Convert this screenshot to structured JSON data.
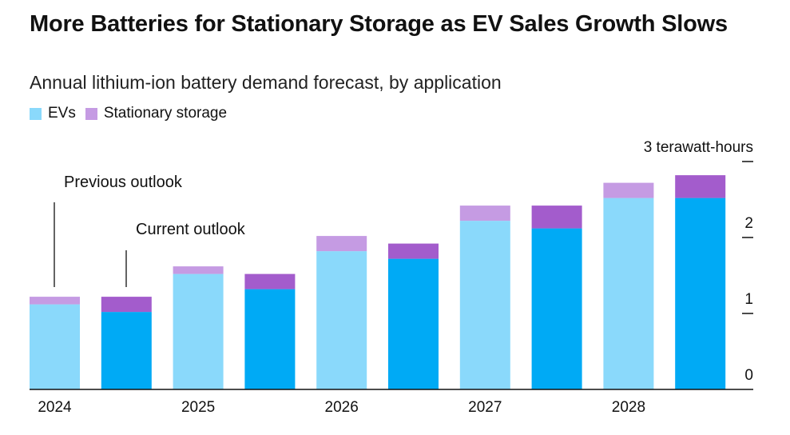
{
  "title": "More Batteries for Stationary Storage as EV Sales Growth Slows",
  "subtitle": "Annual lithium-ion battery demand forecast, by application",
  "legend": {
    "evs": "EVs",
    "storage": "Stationary storage"
  },
  "colors": {
    "ev_previous": "#8ad9fb",
    "ev_current": "#00aaf5",
    "storage_previous": "#c59be3",
    "storage_current": "#a35ccc",
    "axis": "#111111"
  },
  "annotations": {
    "previous": "Previous outlook",
    "current": "Current outlook"
  },
  "chart_data": {
    "type": "bar",
    "stacked": true,
    "title": "More Batteries for Stationary Storage as EV Sales Growth Slows",
    "subtitle": "Annual lithium-ion battery demand forecast, by application",
    "x_labels": [
      "2024",
      "2025",
      "2026",
      "2027",
      "2028"
    ],
    "groups": [
      "Previous outlook",
      "Current outlook"
    ],
    "ylabel": "3 terawatt-hours",
    "ylim": [
      0,
      3
    ],
    "yticks": [
      "0",
      "1",
      "2",
      "3 terawatt-hours"
    ],
    "legend_position": "top-left",
    "bars": [
      {
        "year": "2024",
        "outlook": "Previous outlook",
        "evs": 1.12,
        "storage": 0.1
      },
      {
        "year": "2024",
        "outlook": "Current outlook",
        "evs": 1.02,
        "storage": 0.2
      },
      {
        "year": "2025",
        "outlook": "Previous outlook",
        "evs": 1.52,
        "storage": 0.1
      },
      {
        "year": "2025",
        "outlook": "Current outlook",
        "evs": 1.32,
        "storage": 0.2
      },
      {
        "year": "2026",
        "outlook": "Previous outlook",
        "evs": 1.82,
        "storage": 0.2
      },
      {
        "year": "2026",
        "outlook": "Current outlook",
        "evs": 1.72,
        "storage": 0.2
      },
      {
        "year": "2027",
        "outlook": "Previous outlook",
        "evs": 2.22,
        "storage": 0.2
      },
      {
        "year": "2027",
        "outlook": "Current outlook",
        "evs": 2.12,
        "storage": 0.3
      },
      {
        "year": "2028",
        "outlook": "Previous outlook",
        "evs": 2.52,
        "storage": 0.2
      },
      {
        "year": "2028",
        "outlook": "Current outlook",
        "evs": 2.52,
        "storage": 0.3
      }
    ]
  }
}
